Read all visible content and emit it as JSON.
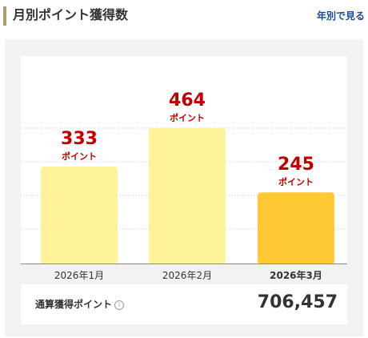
{
  "header": {
    "title": "月別ポイント獲得数",
    "yearly_link": "年別で見る"
  },
  "chart_data": {
    "type": "bar",
    "categories": [
      "2026年1月",
      "2026年2月",
      "2026年3月"
    ],
    "values": [
      333,
      464,
      245
    ],
    "unit_label": "ポイント",
    "highlight_index": 2,
    "grid": true,
    "colors": {
      "bar": "#fff39a",
      "bar_highlight": "#ffc933",
      "value_text": "#c00000",
      "grid": "#d0d0d0",
      "axis": "#888888"
    }
  },
  "total": {
    "label": "通算獲得ポイント",
    "info_icon": "info-icon",
    "value": "706,457"
  }
}
